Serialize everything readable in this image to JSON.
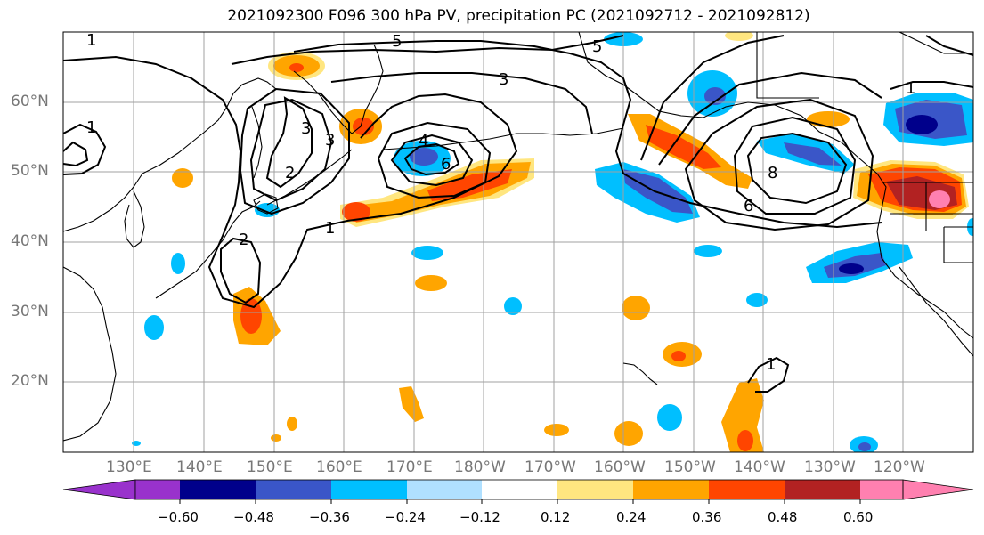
{
  "title": "2021092300 F096 300 hPa PV, precipitation PC (2021092712 - 2021092812)",
  "map": {
    "lat_labels": [
      "60°N",
      "50°N",
      "40°N",
      "30°N",
      "20°N"
    ],
    "lon_labels": [
      "130°E",
      "140°E",
      "150°E",
      "160°E",
      "170°E",
      "180°W",
      "170°W",
      "160°W",
      "150°W",
      "140°W",
      "130°W",
      "120°W"
    ],
    "contour_labels": [
      "1",
      "1",
      "1",
      "1",
      "1",
      "2",
      "2",
      "3",
      "3",
      "3",
      "4",
      "5",
      "6",
      "6",
      "8",
      "5"
    ]
  },
  "colorbar": {
    "tick_labels": [
      "−0.60",
      "−0.48",
      "−0.36",
      "−0.24",
      "−0.12",
      "0.12",
      "0.24",
      "0.36",
      "0.48",
      "0.60"
    ],
    "colors": [
      "#9932cc",
      "#00008b",
      "#3a56c8",
      "#00bfff",
      "#b0e0ff",
      "#ffffff",
      "#ffe680",
      "#ffa500",
      "#ff4500",
      "#b22222",
      "#ff80b0"
    ]
  }
}
